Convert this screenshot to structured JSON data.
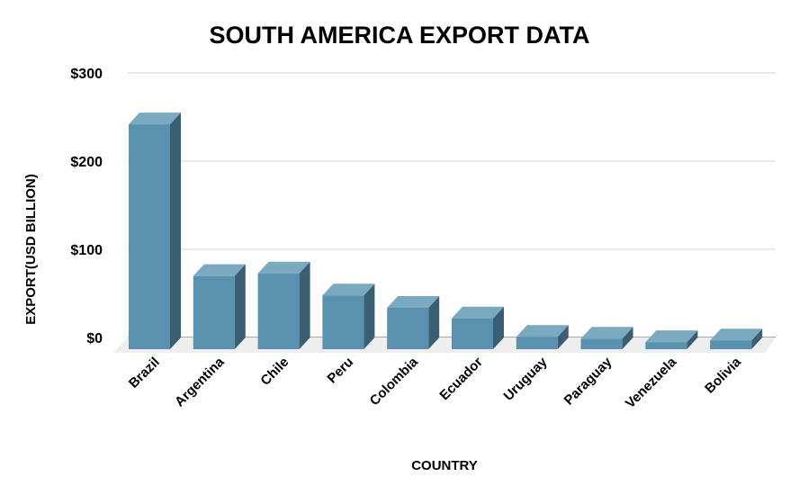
{
  "chart_data": {
    "type": "bar",
    "style": "3d",
    "title": "SOUTH AMERICA EXPORT DATA",
    "xlabel": "COUNTRY",
    "ylabel": "EXPORT(USD BILLION)",
    "categories": [
      "Brazil",
      "Argentina",
      "Chile",
      "Peru",
      "Colombia",
      "Ecuador",
      "Uruguay",
      "Paraguay",
      "Venezuela",
      "Bolivia"
    ],
    "values": [
      255,
      83,
      86,
      61,
      47,
      35,
      14,
      12,
      8,
      10
    ],
    "ylim": [
      0,
      300
    ],
    "yticks": [
      0,
      100,
      200,
      300
    ],
    "ytick_labels": [
      "$0",
      "$100",
      "$200",
      "$300"
    ],
    "grid": true,
    "legend": "none",
    "colors": {
      "front": "#5a91ae",
      "top": "#7aa9c0",
      "side": "#3a5f72",
      "grid": "#d9d9d9",
      "floor": "#eeeeee"
    }
  }
}
